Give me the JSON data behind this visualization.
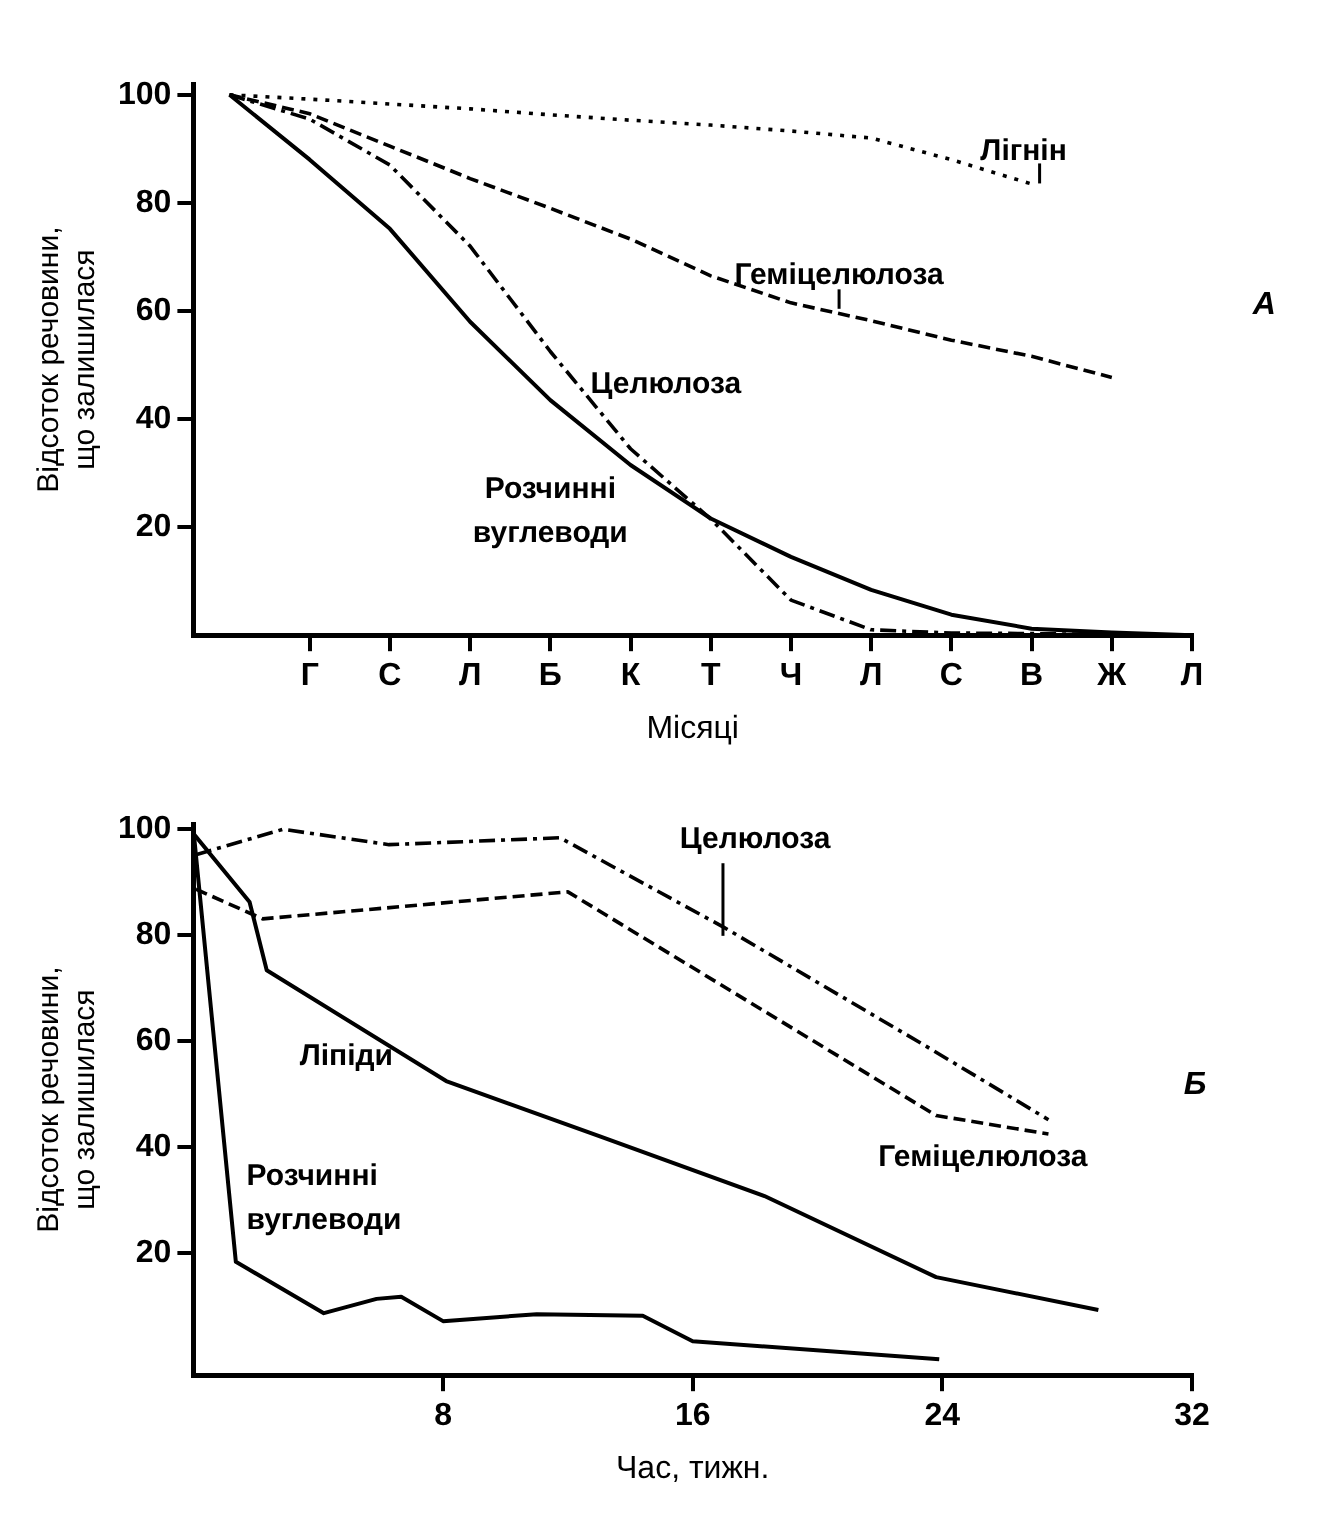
{
  "chart_data": [
    {
      "type": "line",
      "xlabel": "Місяці",
      "ylabel": "Відсоток речовини, що залишилася",
      "categories": [
        null,
        "Г",
        "С",
        "Л",
        "Б",
        "К",
        "Т",
        "Ч",
        "Л",
        "С",
        "В",
        "Ж",
        "Л"
      ],
      "ylim": [
        0,
        102
      ],
      "yticks": [
        20,
        40,
        60,
        80,
        100
      ],
      "grid": false,
      "legend": false,
      "marker": "none",
      "annotations": [
        "A"
      ],
      "series": [
        {
          "name": "Лігнін",
          "color": "#000000",
          "line_style": "dotted",
          "values": [
            100,
            99.2,
            98.3,
            97.4,
            96.3,
            95.3,
            94.4,
            93.3,
            92,
            88,
            83.5,
            null,
            null
          ]
        },
        {
          "name": "Геміцелюлоза",
          "color": "#000000",
          "line_style": "dashed",
          "values": [
            100,
            96.5,
            90.5,
            84.5,
            79,
            73.3,
            66.5,
            61.5,
            58.2,
            54.6,
            51.6,
            47.7,
            null
          ]
        },
        {
          "name": "Целюлоза",
          "color": "#000000",
          "line_style": "dashdot",
          "values": [
            100,
            95.5,
            87,
            72,
            52.5,
            34.5,
            21.5,
            6.5,
            1,
            0.4,
            0.3,
            0.1,
            0
          ]
        },
        {
          "name": "Розчинні вуглеводи",
          "color": "#000000",
          "line_style": "solid",
          "values": [
            100,
            88,
            75.2,
            58,
            43.5,
            31.5,
            21.6,
            14.5,
            8.4,
            3.8,
            1.2,
            0.5,
            0
          ]
        }
      ]
    },
    {
      "type": "line",
      "xlabel": "Час, тижн.",
      "ylabel": "Відсоток речовини, що залишилася",
      "xlim": [
        0,
        32
      ],
      "ylim": [
        -3,
        101
      ],
      "xticks": [
        8,
        16,
        24,
        32
      ],
      "yticks": [
        20,
        40,
        60,
        80,
        100
      ],
      "grid": false,
      "legend": false,
      "marker": "none",
      "annotations": [
        "Б"
      ],
      "series": [
        {
          "name": "Целюлоза",
          "color": "#000000",
          "line_style": "dashdot",
          "x": [
            0.08,
            2.87,
            6.27,
            11.75,
            17,
            23.5,
            27.4
          ],
          "values": [
            95.2,
            100,
            97.1,
            98.4,
            81.5,
            59,
            45.2
          ]
        },
        {
          "name": "Геміцелюлоза",
          "color": "#000000",
          "line_style": "dashed",
          "x": [
            0.08,
            2.22,
            12,
            23.8,
            27.4
          ],
          "values": [
            88.7,
            83.1,
            88.2,
            46,
            42.5
          ]
        },
        {
          "name": "Ліпіди",
          "color": "#000000",
          "line_style": "solid",
          "x": [
            0,
            1.8,
            2.35,
            8.1,
            13.05,
            18.3,
            23.8,
            29
          ],
          "values": [
            99.2,
            86.3,
            73.4,
            52.5,
            42,
            30.8,
            15.5,
            9.3
          ]
        },
        {
          "name": "Розчинні вуглеводи",
          "color": "#000000",
          "line_style": "solid",
          "x": [
            0,
            1.36,
            4.18,
            5.87,
            6.66,
            8,
            11,
            14.4,
            16,
            23.9
          ],
          "values": [
            100,
            18.4,
            8.7,
            11.4,
            11.8,
            7.2,
            8.5,
            8.2,
            3.4,
            0
          ]
        }
      ]
    }
  ]
}
